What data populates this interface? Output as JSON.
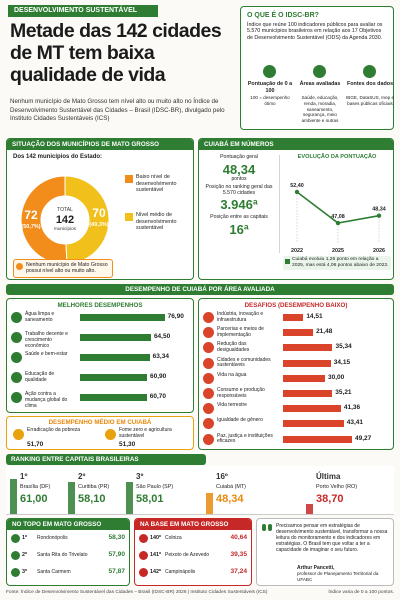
{
  "header": {
    "tag": "DESENVOLVIMENTO SUSTENTÁVEL",
    "title": "Metade das 142 cidades de MT tem baixa qualidade de vida",
    "lead": "Nenhum município de Mato Grosso tem nível alto ou muito alto no Índice de Desenvolvimento Sustentável das Cidades – Brasil (IDSC-BR), divulgado pelo Instituto Cidades Sustentáveis (ICS)"
  },
  "about": {
    "title": "O QUE É O IDSC-BR?",
    "text": "Índice que reúne 100 indicadores públicos para avaliar os 5.570 municípios brasileiros em relação aos 17 Objetivos de Desenvolvimento Sustentável (ODS) da Agenda 2030.",
    "items": [
      {
        "title": "Pontuação de 0 a 100",
        "text": "100 = desempenho ótimo"
      },
      {
        "title": "Áreas avaliadas",
        "text": "Saúde, educação, renda, moradia, saneamento, segurança, meio ambiente e outras"
      },
      {
        "title": "Fontes dos dados",
        "text": "IBGE, DataSUS, Inep e bases públicas oficiais"
      }
    ]
  },
  "situation": {
    "title": "SITUAÇÃO DOS MUNICÍPIOS DE MATO GROSSO",
    "intro": "Dos 142 municípios do Estado:",
    "total_label": "TOTAL",
    "total": "142",
    "total_unit": "municípios",
    "segments": [
      {
        "name": "Baixo nível de desenvolvimento sustentável",
        "count": 72,
        "share": 50.7,
        "share_label": "(50,7%)",
        "color": "#f28c1b"
      },
      {
        "name": "Nível médio de desenvolvimento sustentável",
        "count": 70,
        "share": 49.3,
        "share_label": "(49,3%)",
        "color": "#f2c01b"
      }
    ],
    "note": "Nenhum município de Mato Grosso possui nível alto ou muito alto."
  },
  "cuiaba": {
    "title": "CUIABÁ EM NÚMEROS",
    "stats": [
      {
        "label": "Pontuação geral",
        "value": "48,34",
        "unit": "pontos"
      },
      {
        "label": "Posição no ranking geral das 5.570 cidades",
        "value": "3.946ª"
      },
      {
        "label": "Posição entre as capitais",
        "value": "16ª"
      }
    ],
    "chart": {
      "type": "line",
      "title": "EVOLUÇÃO DA PONTUAÇÃO",
      "categories": [
        "2022",
        "2025",
        "2026"
      ],
      "values": [
        52.4,
        47.08,
        48.34
      ],
      "value_labels": [
        "52,40",
        "47,08",
        "48,34"
      ],
      "ylim": [
        44,
        56
      ],
      "color": "#2e7d32"
    },
    "note": "Cuiabá evoluiu 1,26 ponto em relação a 2025, mas está 4,06 pontos abaixo de 2022."
  },
  "performance": {
    "title": "DESEMPENHO DE CUIABÁ POR ÁREA AVALIADA",
    "xlim": [
      0,
      100
    ],
    "best": {
      "title": "MELHORES DESEMPENHOS",
      "color": "#2e7d32",
      "items": [
        {
          "name": "Água limpa e saneamento",
          "value": 76.9,
          "value_label": "76,90"
        },
        {
          "name": "Trabalho decente e crescimento econômico",
          "value": 64.5,
          "value_label": "64,50"
        },
        {
          "name": "Saúde e bem-estar",
          "value": 63.34,
          "value_label": "63,34"
        },
        {
          "name": "Educação de qualidade",
          "value": 60.9,
          "value_label": "60,90"
        },
        {
          "name": "Ação contra a mudança global do clima",
          "value": 60.7,
          "value_label": "60,70"
        }
      ]
    },
    "worst": {
      "title": "DESAFIOS (DESEMPENHO BAIXO)",
      "color": "#d9442b",
      "items": [
        {
          "name": "Indústria, inovação e infraestrutura",
          "value": 14.51,
          "value_label": "14,51"
        },
        {
          "name": "Parcerias e meios de implementação",
          "value": 21.48,
          "value_label": "21,48"
        },
        {
          "name": "Redução das desigualdades",
          "value": 35.34,
          "value_label": "35,34"
        },
        {
          "name": "Cidades e comunidades sustentáveis",
          "value": 34.15,
          "value_label": "34,15"
        },
        {
          "name": "Vida na água",
          "value": 30,
          "value_label": "30,00"
        },
        {
          "name": "Consumo e produção responsáveis",
          "value": 35.21,
          "value_label": "35,21"
        },
        {
          "name": "Vida terrestre",
          "value": 41.36,
          "value_label": "41,36"
        },
        {
          "name": "Igualdade de gênero",
          "value": 43.41,
          "value_label": "43,41"
        },
        {
          "name": "Paz, justiça e instituições eficazes",
          "value": 49.27,
          "value_label": "49,27"
        }
      ]
    },
    "medium": {
      "title": "DESEMPENHO MÉDIO EM CUIABÁ",
      "items": [
        {
          "name": "Erradicação da pobreza",
          "value": "51,70"
        },
        {
          "name": "Fome zero e agricultura sustentável",
          "value": "51,30"
        }
      ]
    }
  },
  "ranking": {
    "title": "RANKING ENTRE CAPITAIS BRASILEIRAS",
    "ylim": [
      30,
      65
    ],
    "items": [
      {
        "rank": "1º",
        "city": "Brasília (DF)",
        "value": 61,
        "value_label": "61,00",
        "color": "#2e7d32"
      },
      {
        "rank": "2º",
        "city": "Curitiba (PR)",
        "value": 58.1,
        "value_label": "58,10",
        "color": "#2e7d32"
      },
      {
        "rank": "3º",
        "city": "São Paulo (SP)",
        "value": 58.01,
        "value_label": "58,01",
        "color": "#2e7d32"
      },
      {
        "rank": "16º",
        "city": "Cuiabá (MT)",
        "value": 48.34,
        "value_label": "48,34",
        "color": "#e8890c"
      },
      {
        "rank": "Última",
        "city": "Porto Velho (RO)",
        "value": 38.7,
        "value_label": "38,70",
        "color": "#c62828"
      }
    ]
  },
  "top": {
    "title": "NO TOPO EM MATO GROSSO",
    "items": [
      {
        "rank": "1º",
        "city": "Rondonópolis",
        "value": "58,30"
      },
      {
        "rank": "2º",
        "city": "Santa Rita do Trivelato",
        "value": "57,90"
      },
      {
        "rank": "3º",
        "city": "Santa Carmem",
        "value": "57,87"
      }
    ]
  },
  "bottom": {
    "title": "NA BASE EM MATO GROSSO",
    "items": [
      {
        "rank": "140º",
        "city": "Colniza",
        "value": "40,64"
      },
      {
        "rank": "141º",
        "city": "Peixoto de Azevedo",
        "value": "39,35"
      },
      {
        "rank": "142º",
        "city": "Campinápolis",
        "value": "37,24"
      }
    ]
  },
  "quote": {
    "text": "Precisamos pensar em estratégias de desenvolvimento sustentável, transformar a nossa leitura do monitoramento e dos indicadores em estratégias. O Brasil tem que voltar a ter a capacidade de imaginar o seu futuro.",
    "author": "Arthur Pancetti,",
    "role": "professor de Planejamento Territorial da UFABC"
  },
  "footer": {
    "source": "Fonte: Índice de Desenvolvimento Sustentável das Cidades – Brasil (IDSC-BR) 2026 | Instituto Cidades Sustentáveis (ICS)",
    "note": "Índice varia de 0 a 100 pontos."
  }
}
